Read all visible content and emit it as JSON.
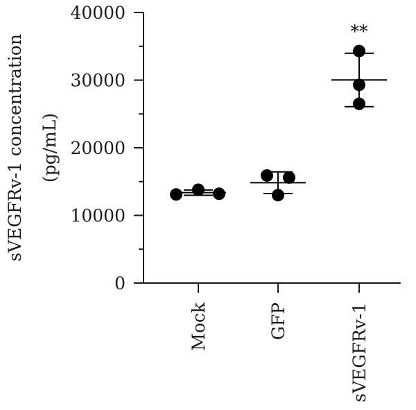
{
  "chart_data": {
    "type": "scatter",
    "ylabel": "sVEGFRv-1 concentration",
    "ylabel_unit": "(pg/mL)",
    "ylim": [
      0,
      40000
    ],
    "yticks": [
      0,
      10000,
      20000,
      30000,
      40000
    ],
    "ytick_labels": [
      "0",
      "10000",
      "20000",
      "30000",
      "40000"
    ],
    "y_minor_step": 5000,
    "grid": false,
    "legend": "none",
    "categories": [
      "Mock",
      "GFP",
      "sVEGFRv-1"
    ],
    "groups": [
      {
        "category": "Mock",
        "points": [
          13100,
          13800,
          13200
        ],
        "mean": 13370,
        "sd_low": 12980,
        "sd_high": 13760,
        "annotation": ""
      },
      {
        "category": "GFP",
        "points": [
          15900,
          13000,
          15600
        ],
        "mean": 14830,
        "sd_low": 13230,
        "sd_high": 16430,
        "annotation": ""
      },
      {
        "category": "sVEGFRv-1",
        "points": [
          34300,
          29300,
          26500
        ],
        "mean": 30030,
        "sd_low": 26080,
        "sd_high": 33980,
        "annotation": "**"
      }
    ],
    "colors": {
      "points": "#000000",
      "axis": "#1a1a1a"
    }
  }
}
